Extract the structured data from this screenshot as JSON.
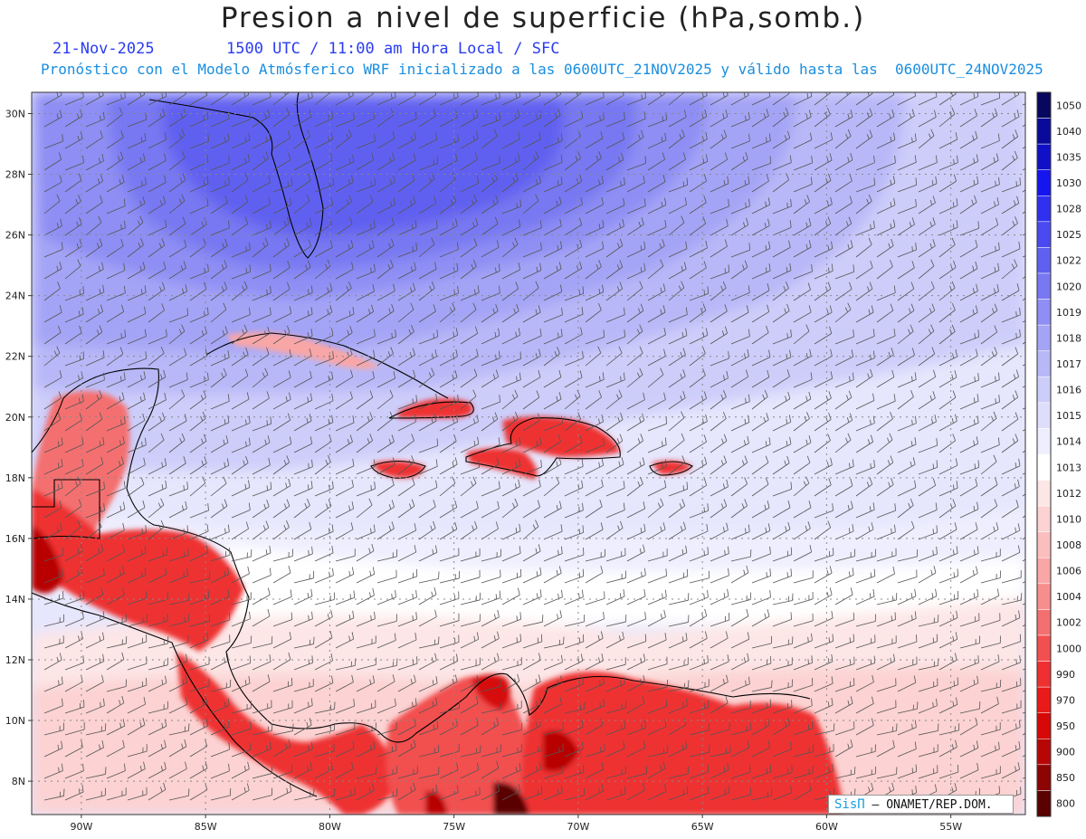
{
  "header": {
    "title": "Presion a nivel de superficie (hPa,somb.)",
    "date": "21-Nov-2025",
    "time": "1500 UTC / 11:00 am Hora Local / SFC",
    "forecast": "Pronóstico con el Modelo Atmósferico WRF inicializado a las 0600UTC_21NOV2025 y válido hasta las  0600UTC_24NOV2025"
  },
  "map": {
    "lon_range": [
      -92,
      -52
    ],
    "lat_range": [
      6.9,
      30.7
    ],
    "lat_labels": [
      "30N",
      "28N",
      "26N",
      "24N",
      "22N",
      "20N",
      "18N",
      "16N",
      "14N",
      "12N",
      "10N",
      "8N"
    ],
    "lon_labels": [
      "90W",
      "85W",
      "80W",
      "75W",
      "70W",
      "65W",
      "60W",
      "55W"
    ],
    "grid": true,
    "wind_barbs": true
  },
  "colorbar": {
    "levels": [
      "1050",
      "1040",
      "1035",
      "1030",
      "1028",
      "1025",
      "1022",
      "1020",
      "1019",
      "1018",
      "1017",
      "1016",
      "1015",
      "1014",
      "1013",
      "1012",
      "1010",
      "1008",
      "1006",
      "1004",
      "1002",
      "1000",
      "990",
      "970",
      "950",
      "900",
      "850",
      "800"
    ],
    "colors": [
      "#07075e",
      "#0a0a9a",
      "#1010c8",
      "#1515ee",
      "#3030f0",
      "#4a4af0",
      "#6060f0",
      "#7878f2",
      "#8e8ef4",
      "#a4a4f6",
      "#b8b8f8",
      "#cdcdfa",
      "#dedefc",
      "#eeeefe",
      "#ffffff",
      "#fde6e6",
      "#fcd2d2",
      "#fbbebe",
      "#f9a6a6",
      "#f78e8e",
      "#f47070",
      "#f25050",
      "#ee3030",
      "#e81a1a",
      "#d60808",
      "#b80606",
      "#8c0404",
      "#5a0202"
    ]
  },
  "credit": {
    "brand": "SisΠ",
    "text": "– ONAMET/REP.DOM."
  }
}
